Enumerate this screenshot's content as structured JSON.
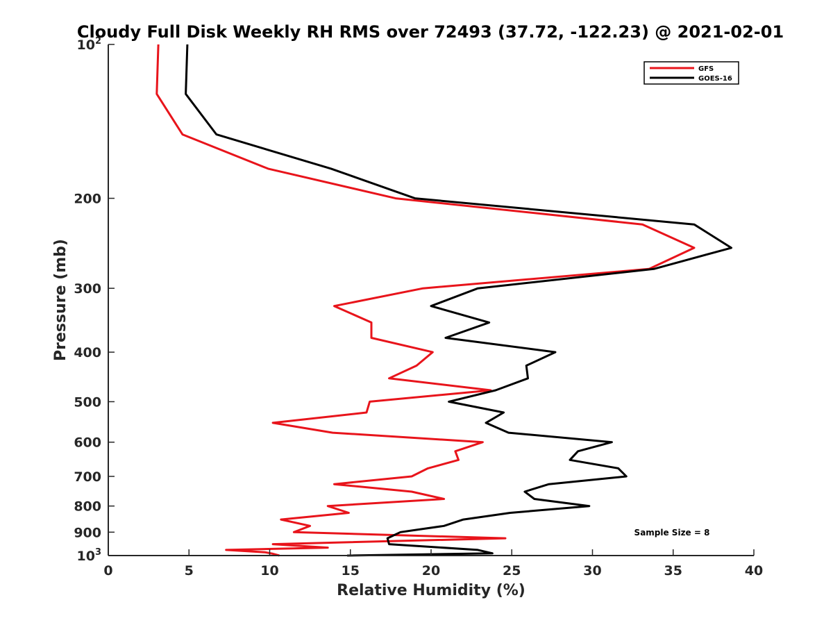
{
  "chart_data": {
    "type": "line",
    "title": "Cloudy Full Disk Weekly RH RMS over 72493 (37.72, -122.23) @ 2021-02-01",
    "xlabel": "Relative Humidity (%)",
    "ylabel": "Pressure (mb)",
    "xlim": [
      0,
      40
    ],
    "ylim": [
      100,
      1000
    ],
    "y_scale": "log",
    "y_reversed": true,
    "x_ticks": [
      0,
      5,
      10,
      15,
      20,
      25,
      30,
      35,
      40
    ],
    "x_tick_labels": [
      "0",
      "5",
      "10",
      "15",
      "20",
      "25",
      "30",
      "35",
      "40"
    ],
    "y_ticks": [
      {
        "value": 100,
        "base": "10",
        "exp": "2"
      },
      {
        "value": 200,
        "label": "200"
      },
      {
        "value": 300,
        "label": "300"
      },
      {
        "value": 400,
        "label": "400"
      },
      {
        "value": 500,
        "label": "500"
      },
      {
        "value": 600,
        "label": "600"
      },
      {
        "value": 700,
        "label": "700"
      },
      {
        "value": 800,
        "label": "800"
      },
      {
        "value": 900,
        "label": "900"
      },
      {
        "value": 1000,
        "base": "10",
        "exp": "3"
      }
    ],
    "grid": false,
    "legend_position": "top-right",
    "annotation": "Sample Size = 8",
    "series": [
      {
        "name": "GFS",
        "color": "#e8141b",
        "points": [
          [
            3.1,
            100
          ],
          [
            3.0,
            125
          ],
          [
            4.6,
            150
          ],
          [
            9.9,
            175
          ],
          [
            17.8,
            200
          ],
          [
            33.1,
            225
          ],
          [
            36.3,
            250
          ],
          [
            33.5,
            275
          ],
          [
            19.5,
            300
          ],
          [
            14.0,
            325
          ],
          [
            16.3,
            350
          ],
          [
            16.3,
            375
          ],
          [
            20.1,
            400
          ],
          [
            19.1,
            425
          ],
          [
            17.4,
            450
          ],
          [
            23.7,
            475
          ],
          [
            16.2,
            500
          ],
          [
            16.0,
            525
          ],
          [
            10.2,
            550
          ],
          [
            13.9,
            575
          ],
          [
            23.2,
            600
          ],
          [
            21.5,
            625
          ],
          [
            21.7,
            650
          ],
          [
            19.8,
            675
          ],
          [
            18.8,
            700
          ],
          [
            14.0,
            725
          ],
          [
            18.8,
            750
          ],
          [
            20.8,
            775
          ],
          [
            13.6,
            800
          ],
          [
            14.9,
            825
          ],
          [
            10.7,
            850
          ],
          [
            12.5,
            875
          ],
          [
            11.5,
            900
          ],
          [
            24.6,
            925
          ],
          [
            10.2,
            950
          ],
          [
            13.6,
            965
          ],
          [
            7.3,
            975
          ],
          [
            9.7,
            985
          ],
          [
            10.2,
            992
          ],
          [
            10.6,
            1000
          ]
        ]
      },
      {
        "name": "GOES-16",
        "color": "#000000",
        "points": [
          [
            4.9,
            100
          ],
          [
            4.8,
            125
          ],
          [
            6.7,
            150
          ],
          [
            13.8,
            175
          ],
          [
            19.0,
            200
          ],
          [
            36.3,
            225
          ],
          [
            38.6,
            250
          ],
          [
            33.8,
            275
          ],
          [
            22.9,
            300
          ],
          [
            20.0,
            325
          ],
          [
            23.6,
            350
          ],
          [
            20.9,
            375
          ],
          [
            27.7,
            400
          ],
          [
            25.9,
            425
          ],
          [
            26.0,
            450
          ],
          [
            24.0,
            475
          ],
          [
            21.1,
            500
          ],
          [
            24.5,
            525
          ],
          [
            23.4,
            550
          ],
          [
            24.8,
            575
          ],
          [
            31.2,
            600
          ],
          [
            29.1,
            625
          ],
          [
            28.6,
            650
          ],
          [
            31.6,
            675
          ],
          [
            32.1,
            700
          ],
          [
            27.3,
            725
          ],
          [
            25.8,
            750
          ],
          [
            26.4,
            775
          ],
          [
            29.8,
            800
          ],
          [
            24.9,
            825
          ],
          [
            22.0,
            850
          ],
          [
            20.8,
            875
          ],
          [
            18.1,
            900
          ],
          [
            17.3,
            925
          ],
          [
            17.4,
            950
          ],
          [
            22.9,
            975
          ],
          [
            23.8,
            990
          ],
          [
            14.8,
            1000
          ]
        ]
      }
    ]
  }
}
